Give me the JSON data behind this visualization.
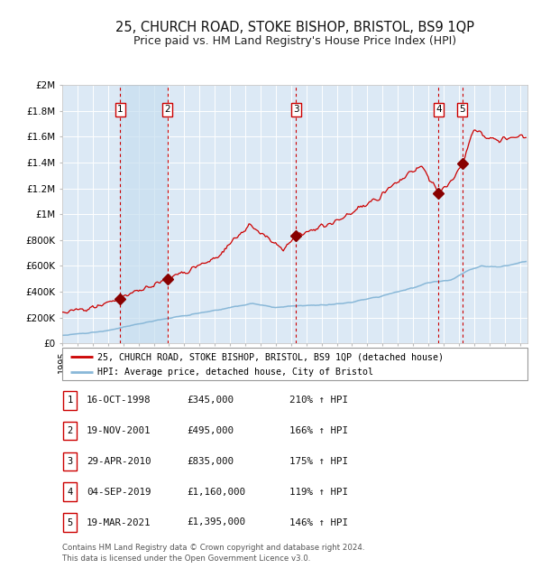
{
  "title": "25, CHURCH ROAD, STOKE BISHOP, BRISTOL, BS9 1QP",
  "subtitle": "Price paid vs. HM Land Registry's House Price Index (HPI)",
  "background_color": "#ffffff",
  "plot_bg_color": "#dce9f5",
  "grid_color": "#ffffff",
  "red_line_color": "#cc0000",
  "blue_line_color": "#89b8d8",
  "sale_marker_color": "#880000",
  "vline_color": "#cc0000",
  "sale_points": [
    {
      "label": 1,
      "date_x": 1998.79,
      "price": 345000
    },
    {
      "label": 2,
      "date_x": 2001.89,
      "price": 495000
    },
    {
      "label": 3,
      "date_x": 2010.33,
      "price": 835000
    },
    {
      "label": 4,
      "date_x": 2019.67,
      "price": 1160000
    },
    {
      "label": 5,
      "date_x": 2021.22,
      "price": 1395000
    }
  ],
  "xlim": [
    1995.0,
    2025.5
  ],
  "ylim": [
    0,
    2000000
  ],
  "ytick_vals": [
    0,
    200000,
    400000,
    600000,
    800000,
    1000000,
    1200000,
    1400000,
    1600000,
    1800000,
    2000000
  ],
  "ytick_labels": [
    "£0",
    "£200K",
    "£400K",
    "£600K",
    "£800K",
    "£1M",
    "£1.2M",
    "£1.4M",
    "£1.6M",
    "£1.8M",
    "£2M"
  ],
  "xticks": [
    1995,
    1996,
    1997,
    1998,
    1999,
    2000,
    2001,
    2002,
    2003,
    2004,
    2005,
    2006,
    2007,
    2008,
    2009,
    2010,
    2011,
    2012,
    2013,
    2014,
    2015,
    2016,
    2017,
    2018,
    2019,
    2020,
    2021,
    2022,
    2023,
    2024,
    2025
  ],
  "legend_line1": "25, CHURCH ROAD, STOKE BISHOP, BRISTOL, BS9 1QP (detached house)",
  "legend_line2": "HPI: Average price, detached house, City of Bristol",
  "footer_line1": "Contains HM Land Registry data © Crown copyright and database right 2024.",
  "footer_line2": "This data is licensed under the Open Government Licence v3.0.",
  "table_rows": [
    {
      "num": "1",
      "date": "16-OCT-1998",
      "price": "£345,000",
      "pct": "210% ↑ HPI"
    },
    {
      "num": "2",
      "date": "19-NOV-2001",
      "price": "£495,000",
      "pct": "166% ↑ HPI"
    },
    {
      "num": "3",
      "date": "29-APR-2010",
      "price": "£835,000",
      "pct": "175% ↑ HPI"
    },
    {
      "num": "4",
      "date": "04-SEP-2019",
      "price": "£1,160,000",
      "pct": "119% ↑ HPI"
    },
    {
      "num": "5",
      "date": "19-MAR-2021",
      "price": "£1,395,000",
      "pct": "146% ↑ HPI"
    }
  ]
}
